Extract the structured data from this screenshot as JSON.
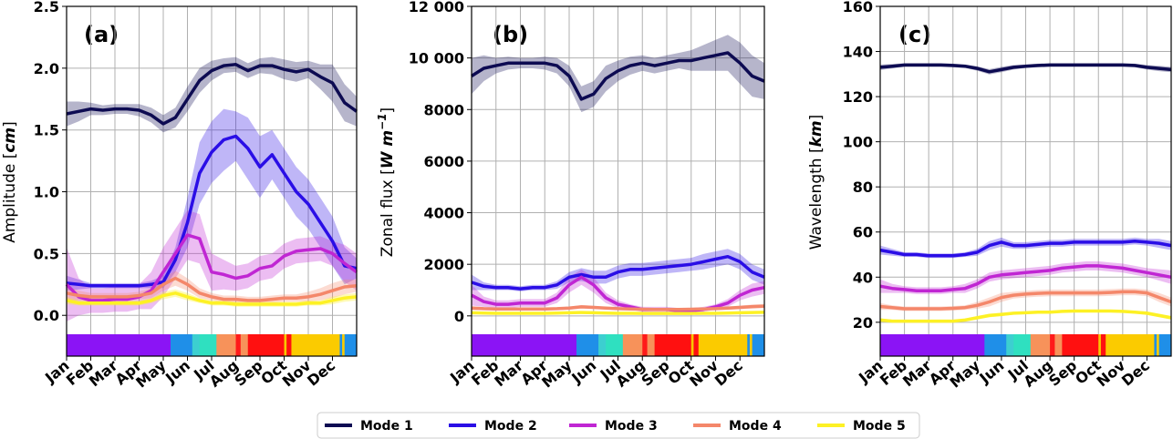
{
  "legend": {
    "placement": "bottom-center",
    "entries": [
      {
        "name": "Mode 1",
        "color": "#0d0b52"
      },
      {
        "name": "Mode 2",
        "color": "#2a0ee6"
      },
      {
        "name": "Mode 3",
        "color": "#c026d3"
      },
      {
        "name": "Mode 4",
        "color": "#f4876a"
      },
      {
        "name": "Mode 5",
        "color": "#fdf125"
      }
    ]
  },
  "months": [
    "Jan",
    "Feb",
    "Mar",
    "Apr",
    "May",
    "Jun",
    "Jul",
    "Aug",
    "Sep",
    "Oct",
    "Nov",
    "Dec"
  ],
  "season_bar": [
    {
      "from": 0,
      "to": 4.3,
      "color": "#8b14f5"
    },
    {
      "from": 4.3,
      "to": 5.2,
      "color": "#1f8fe8"
    },
    {
      "from": 5.2,
      "to": 5.5,
      "color": "#3ccfd0"
    },
    {
      "from": 5.5,
      "to": 6.2,
      "color": "#2fe0c0"
    },
    {
      "from": 6.2,
      "to": 7.0,
      "color": "#f7925a"
    },
    {
      "from": 7.0,
      "to": 7.2,
      "color": "#ff1a1a"
    },
    {
      "from": 7.2,
      "to": 7.5,
      "color": "#f7925a"
    },
    {
      "from": 7.5,
      "to": 9.0,
      "color": "#ff1010"
    },
    {
      "from": 9.0,
      "to": 9.1,
      "color": "#f7c800"
    },
    {
      "from": 9.1,
      "to": 9.3,
      "color": "#ff1010"
    },
    {
      "from": 9.3,
      "to": 11.3,
      "color": "#fbcb00"
    },
    {
      "from": 11.3,
      "to": 11.4,
      "color": "#1f8fe8"
    },
    {
      "from": 11.4,
      "to": 11.5,
      "color": "#fbcb00"
    },
    {
      "from": 11.5,
      "to": 12,
      "color": "#1f8fe8"
    }
  ],
  "chart_data": [
    {
      "type": "line",
      "panel_label": "(a)",
      "ylabel": "Amplitude [cm]",
      "ylabel_plain": "Amplitude [",
      "ylabel_unit": "cm",
      "ylabel_close": "]",
      "ylim": [
        -0.33,
        2.5
      ],
      "yticks": [
        0.0,
        0.5,
        1.0,
        1.5,
        2.0,
        2.5
      ],
      "ytick_labels": [
        "0.0",
        "0.5",
        "1.0",
        "1.5",
        "2.0",
        "2.5"
      ],
      "grid": true,
      "x": [
        0,
        0.5,
        1,
        1.5,
        2,
        2.5,
        3,
        3.5,
        4,
        4.5,
        5,
        5.5,
        6,
        6.5,
        7,
        7.5,
        8,
        8.5,
        9,
        9.5,
        10,
        10.5,
        11,
        11.5,
        12
      ],
      "series": [
        {
          "name": "Mode 1",
          "values": [
            1.63,
            1.65,
            1.67,
            1.66,
            1.67,
            1.67,
            1.66,
            1.62,
            1.55,
            1.6,
            1.75,
            1.9,
            1.98,
            2.02,
            2.03,
            1.98,
            2.02,
            2.02,
            1.99,
            1.97,
            1.99,
            1.93,
            1.88,
            1.72,
            1.65
          ],
          "spread": [
            0.1,
            0.08,
            0.05,
            0.04,
            0.04,
            0.04,
            0.05,
            0.06,
            0.07,
            0.08,
            0.1,
            0.1,
            0.08,
            0.06,
            0.06,
            0.06,
            0.06,
            0.07,
            0.08,
            0.08,
            0.07,
            0.1,
            0.15,
            0.15,
            0.12
          ]
        },
        {
          "name": "Mode 2",
          "values": [
            0.26,
            0.25,
            0.24,
            0.24,
            0.24,
            0.24,
            0.24,
            0.25,
            0.27,
            0.45,
            0.75,
            1.15,
            1.32,
            1.42,
            1.45,
            1.35,
            1.2,
            1.3,
            1.15,
            1.0,
            0.9,
            0.75,
            0.6,
            0.4,
            0.38
          ],
          "spread": [
            0.06,
            0.04,
            0.02,
            0.02,
            0.02,
            0.02,
            0.02,
            0.03,
            0.05,
            0.1,
            0.2,
            0.25,
            0.25,
            0.25,
            0.2,
            0.25,
            0.25,
            0.2,
            0.2,
            0.2,
            0.2,
            0.2,
            0.2,
            0.15,
            0.08
          ]
        },
        {
          "name": "Mode 3",
          "values": [
            0.25,
            0.15,
            0.12,
            0.12,
            0.13,
            0.13,
            0.15,
            0.2,
            0.35,
            0.5,
            0.65,
            0.62,
            0.35,
            0.33,
            0.3,
            0.32,
            0.38,
            0.4,
            0.48,
            0.52,
            0.53,
            0.54,
            0.5,
            0.42,
            0.35
          ],
          "spread": [
            0.3,
            0.15,
            0.1,
            0.1,
            0.1,
            0.1,
            0.1,
            0.15,
            0.2,
            0.2,
            0.2,
            0.2,
            0.15,
            0.12,
            0.1,
            0.1,
            0.1,
            0.1,
            0.1,
            0.1,
            0.1,
            0.1,
            0.1,
            0.15,
            0.15
          ]
        },
        {
          "name": "Mode 4",
          "values": [
            0.18,
            0.16,
            0.15,
            0.15,
            0.15,
            0.15,
            0.16,
            0.18,
            0.25,
            0.3,
            0.25,
            0.18,
            0.15,
            0.13,
            0.13,
            0.12,
            0.12,
            0.13,
            0.14,
            0.14,
            0.15,
            0.17,
            0.2,
            0.23,
            0.24
          ],
          "spread": [
            0.06,
            0.04,
            0.03,
            0.03,
            0.03,
            0.03,
            0.03,
            0.04,
            0.05,
            0.06,
            0.05,
            0.04,
            0.03,
            0.03,
            0.03,
            0.03,
            0.03,
            0.03,
            0.03,
            0.03,
            0.04,
            0.05,
            0.06,
            0.06,
            0.05
          ]
        },
        {
          "name": "Mode 5",
          "values": [
            0.12,
            0.1,
            0.1,
            0.1,
            0.1,
            0.1,
            0.1,
            0.12,
            0.16,
            0.18,
            0.15,
            0.12,
            0.1,
            0.1,
            0.09,
            0.09,
            0.09,
            0.09,
            0.09,
            0.09,
            0.1,
            0.1,
            0.12,
            0.14,
            0.15
          ],
          "spread": [
            0.03,
            0.02,
            0.02,
            0.02,
            0.02,
            0.02,
            0.02,
            0.02,
            0.03,
            0.03,
            0.03,
            0.02,
            0.02,
            0.02,
            0.02,
            0.02,
            0.02,
            0.02,
            0.02,
            0.02,
            0.02,
            0.02,
            0.03,
            0.03,
            0.03
          ]
        }
      ]
    },
    {
      "type": "line",
      "panel_label": "(b)",
      "ylabel": "Zonal flux [W m^-1]",
      "ylabel_plain": "Zonal flux [",
      "ylabel_unit": "W m",
      "ylabel_sup": "−1",
      "ylabel_close": "]",
      "ylim": [
        -1560,
        12000
      ],
      "yticks": [
        0,
        2000,
        4000,
        6000,
        8000,
        10000,
        12000
      ],
      "ytick_labels": [
        "0",
        "2000",
        "4000",
        "6000",
        "8000",
        "10 000",
        "12 000"
      ],
      "grid": true,
      "x": [
        0,
        0.5,
        1,
        1.5,
        2,
        2.5,
        3,
        3.5,
        4,
        4.5,
        5,
        5.5,
        6,
        6.5,
        7,
        7.5,
        8,
        8.5,
        9,
        9.5,
        10,
        10.5,
        11,
        11.5,
        12
      ],
      "series": [
        {
          "name": "Mode 1",
          "values": [
            9300,
            9600,
            9700,
            9800,
            9800,
            9800,
            9800,
            9700,
            9300,
            8400,
            8600,
            9200,
            9500,
            9700,
            9800,
            9700,
            9800,
            9900,
            9900,
            10000,
            10100,
            10200,
            9800,
            9300,
            9100
          ],
          "spread": [
            700,
            500,
            300,
            250,
            200,
            200,
            250,
            300,
            400,
            500,
            500,
            500,
            400,
            350,
            300,
            300,
            300,
            300,
            400,
            500,
            600,
            700,
            800,
            800,
            700
          ]
        },
        {
          "name": "Mode 2",
          "values": [
            1300,
            1150,
            1100,
            1100,
            1050,
            1100,
            1100,
            1200,
            1500,
            1600,
            1500,
            1500,
            1700,
            1800,
            1800,
            1850,
            1900,
            1950,
            2000,
            2100,
            2200,
            2300,
            2100,
            1700,
            1500
          ],
          "spread": [
            300,
            150,
            100,
            100,
            100,
            100,
            100,
            150,
            200,
            250,
            250,
            250,
            250,
            250,
            250,
            250,
            250,
            250,
            250,
            300,
            300,
            300,
            300,
            300,
            300
          ]
        },
        {
          "name": "Mode 3",
          "values": [
            800,
            550,
            450,
            450,
            500,
            500,
            500,
            700,
            1200,
            1500,
            1200,
            700,
            450,
            350,
            250,
            250,
            250,
            200,
            200,
            250,
            350,
            500,
            800,
            1000,
            1100
          ],
          "spread": [
            400,
            200,
            150,
            150,
            150,
            150,
            150,
            200,
            300,
            300,
            300,
            200,
            150,
            100,
            100,
            100,
            100,
            100,
            100,
            100,
            100,
            150,
            200,
            250,
            250
          ]
        },
        {
          "name": "Mode 4",
          "values": [
            300,
            280,
            270,
            270,
            270,
            270,
            270,
            280,
            300,
            350,
            330,
            300,
            280,
            270,
            260,
            250,
            250,
            250,
            260,
            270,
            280,
            300,
            330,
            360,
            380
          ],
          "spread": [
            80,
            60,
            50,
            50,
            50,
            50,
            50,
            50,
            60,
            70,
            60,
            50,
            50,
            50,
            50,
            50,
            50,
            50,
            50,
            50,
            60,
            60,
            70,
            80,
            80
          ]
        },
        {
          "name": "Mode 5",
          "values": [
            120,
            110,
            100,
            100,
            100,
            100,
            100,
            110,
            120,
            130,
            120,
            110,
            100,
            100,
            95,
            95,
            95,
            95,
            95,
            100,
            100,
            110,
            120,
            130,
            140
          ],
          "spread": [
            30,
            25,
            20,
            20,
            20,
            20,
            20,
            20,
            25,
            25,
            25,
            20,
            20,
            20,
            20,
            20,
            20,
            20,
            20,
            20,
            20,
            25,
            25,
            30,
            30
          ]
        }
      ]
    },
    {
      "type": "line",
      "panel_label": "(c)",
      "ylabel": "Wavelength [km]",
      "ylabel_plain": "Wavelength [",
      "ylabel_unit": "km",
      "ylabel_close": "]",
      "ylim": [
        5,
        160
      ],
      "yticks": [
        20,
        40,
        60,
        80,
        100,
        120,
        140,
        160
      ],
      "ytick_labels": [
        "20",
        "40",
        "60",
        "80",
        "100",
        "120",
        "140",
        "160"
      ],
      "grid": true,
      "x": [
        0,
        0.5,
        1,
        1.5,
        2,
        2.5,
        3,
        3.5,
        4,
        4.5,
        5,
        5.5,
        6,
        6.5,
        7,
        7.5,
        8,
        8.5,
        9,
        9.5,
        10,
        10.5,
        11,
        11.5,
        12
      ],
      "series": [
        {
          "name": "Mode 1",
          "values": [
            133,
            133.5,
            134,
            134,
            134,
            134,
            133.8,
            133.5,
            132.5,
            131,
            132,
            133,
            133.5,
            133.8,
            134,
            134,
            134,
            134,
            134,
            134,
            134,
            133.8,
            133,
            132.5,
            132
          ],
          "spread": [
            1.2,
            1,
            0.8,
            0.8,
            0.8,
            0.8,
            0.8,
            0.8,
            1,
            1.2,
            1.2,
            1,
            0.8,
            0.8,
            0.8,
            0.8,
            0.8,
            0.8,
            0.8,
            0.8,
            0.8,
            0.8,
            1,
            1.2,
            1.2
          ]
        },
        {
          "name": "Mode 2",
          "values": [
            52,
            51,
            50,
            50,
            49.5,
            49.5,
            49.5,
            50,
            51,
            54,
            55.5,
            54,
            54,
            54.5,
            55,
            55,
            55.5,
            55.5,
            55.5,
            55.5,
            55.5,
            56,
            55.5,
            55,
            54
          ],
          "spread": [
            2,
            1.5,
            1,
            1,
            1,
            1,
            1,
            1,
            1.5,
            2,
            2,
            1.5,
            1.5,
            1.5,
            1.5,
            1.5,
            1.5,
            1.5,
            1.5,
            1.5,
            1.5,
            1.5,
            1.5,
            2,
            2
          ]
        },
        {
          "name": "Mode 3",
          "values": [
            36,
            35,
            34.5,
            34,
            34,
            34,
            34.5,
            35,
            37,
            40,
            41,
            41.5,
            42,
            42.5,
            43,
            44,
            44.5,
            45,
            45,
            44.5,
            44,
            43,
            42,
            41,
            40
          ],
          "spread": [
            3,
            2,
            1.5,
            1.5,
            1.5,
            1.5,
            1.5,
            2,
            2,
            2,
            2,
            2,
            2,
            2,
            2,
            2,
            2,
            2,
            2,
            2,
            2,
            2,
            2,
            2.5,
            3
          ]
        },
        {
          "name": "Mode 4",
          "values": [
            27,
            26.5,
            26,
            26,
            26,
            26,
            26.2,
            26.5,
            27.5,
            29,
            31,
            32,
            32.5,
            32.8,
            33,
            33,
            33,
            33,
            33,
            33.2,
            33.5,
            33.5,
            33,
            31,
            29
          ],
          "spread": [
            1.5,
            1,
            1,
            1,
            1,
            1,
            1,
            1,
            1.5,
            2,
            2,
            1.5,
            1.5,
            1.5,
            1.5,
            1.5,
            1.5,
            1.5,
            1.5,
            1.5,
            1.5,
            1.5,
            1.5,
            2,
            2
          ]
        },
        {
          "name": "Mode 5",
          "values": [
            21,
            20.5,
            20.5,
            20.5,
            20.5,
            20.5,
            20.5,
            21,
            22,
            23,
            23.5,
            24,
            24.2,
            24.5,
            24.5,
            24.8,
            25,
            25,
            25,
            25,
            24.8,
            24.5,
            24,
            23,
            22
          ],
          "spread": [
            0.8,
            0.6,
            0.6,
            0.6,
            0.6,
            0.6,
            0.6,
            0.6,
            0.8,
            0.8,
            0.8,
            0.6,
            0.6,
            0.6,
            0.6,
            0.6,
            0.6,
            0.6,
            0.6,
            0.6,
            0.6,
            0.6,
            0.8,
            0.8,
            0.8
          ]
        }
      ]
    }
  ]
}
